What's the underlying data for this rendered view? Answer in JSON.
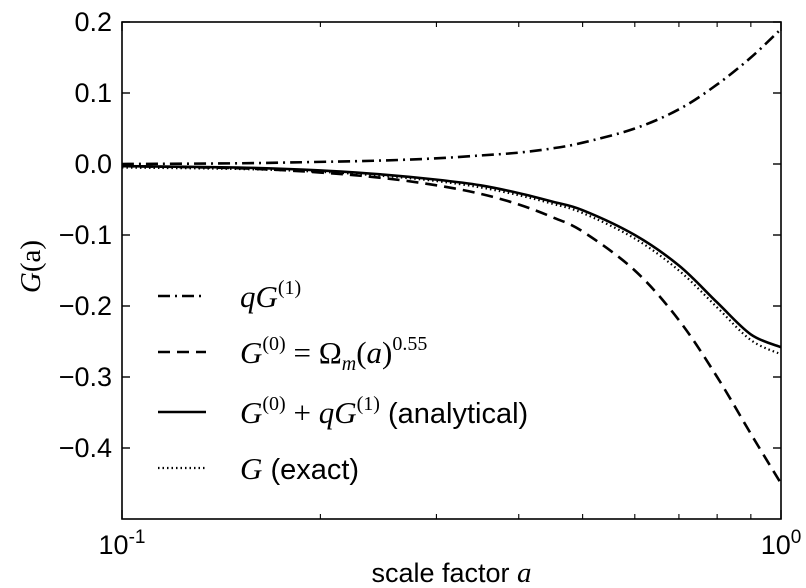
{
  "chart_data": {
    "type": "line",
    "xlabel": {
      "prefix": "scale factor ",
      "var": "a"
    },
    "ylabel": {
      "var": "G",
      "arg": "(a)"
    },
    "x_scale": "log",
    "xlim": [
      0.1,
      1.0
    ],
    "ylim": [
      -0.5,
      0.2
    ],
    "x_ticks": [
      {
        "value": 0.1,
        "base": "10",
        "exp": "-1"
      },
      {
        "value": 1.0,
        "base": "10",
        "exp": "0"
      }
    ],
    "y_ticks": [
      {
        "value": 0.2,
        "label": "0.2"
      },
      {
        "value": 0.1,
        "label": "0.1"
      },
      {
        "value": 0.0,
        "label": "0.0"
      },
      {
        "value": -0.1,
        "label": "−0.1"
      },
      {
        "value": -0.2,
        "label": "−0.2"
      },
      {
        "value": -0.3,
        "label": "−0.3"
      },
      {
        "value": -0.4,
        "label": "−0.4"
      }
    ],
    "grid": false,
    "legend_position": "lower-left",
    "series": [
      {
        "key": "qG1",
        "style": "dashdot",
        "legend_parts": [
          {
            "t": "q",
            "c": "math"
          },
          {
            "t": "G",
            "c": "math"
          },
          {
            "t": "(1)",
            "c": "sup"
          }
        ],
        "x": [
          0.1,
          0.15,
          0.2,
          0.25,
          0.3,
          0.35,
          0.4,
          0.45,
          0.5,
          0.6,
          0.7,
          0.8,
          0.9,
          1.0
        ],
        "y": [
          0.0,
          0.001,
          0.003,
          0.005,
          0.008,
          0.012,
          0.016,
          0.022,
          0.03,
          0.05,
          0.077,
          0.112,
          0.15,
          0.19
        ]
      },
      {
        "key": "G0",
        "style": "dashed",
        "legend_parts": [
          {
            "t": "G",
            "c": "math"
          },
          {
            "t": "(0)",
            "c": "sup"
          },
          {
            "t": " = Ω",
            "c": "plainserif"
          },
          {
            "t": "m",
            "c": "sub"
          },
          {
            "t": "(",
            "c": "plainserif"
          },
          {
            "t": "a",
            "c": "math"
          },
          {
            "t": ")",
            "c": "plainserif"
          },
          {
            "t": "0.55",
            "c": "sup"
          }
        ],
        "x": [
          0.1,
          0.15,
          0.2,
          0.25,
          0.3,
          0.35,
          0.4,
          0.45,
          0.5,
          0.6,
          0.7,
          0.8,
          0.9,
          1.0
        ],
        "y": [
          -0.003,
          -0.006,
          -0.012,
          -0.02,
          -0.03,
          -0.042,
          -0.057,
          -0.075,
          -0.095,
          -0.15,
          -0.22,
          -0.3,
          -0.38,
          -0.45
        ]
      },
      {
        "key": "analytical",
        "style": "solid",
        "legend_parts": [
          {
            "t": "G",
            "c": "math"
          },
          {
            "t": "(0)",
            "c": "sup"
          },
          {
            "t": " + ",
            "c": "plainserif"
          },
          {
            "t": "q",
            "c": "math"
          },
          {
            "t": "G",
            "c": "math"
          },
          {
            "t": "(1)",
            "c": "sup"
          },
          {
            "t": " (analytical)",
            "c": "plain"
          }
        ],
        "x": [
          0.1,
          0.15,
          0.2,
          0.25,
          0.3,
          0.35,
          0.4,
          0.45,
          0.5,
          0.6,
          0.7,
          0.8,
          0.9,
          1.0
        ],
        "y": [
          -0.003,
          -0.005,
          -0.009,
          -0.015,
          -0.022,
          -0.03,
          -0.041,
          -0.053,
          -0.065,
          -0.1,
          -0.143,
          -0.195,
          -0.24,
          -0.258
        ]
      },
      {
        "key": "exact",
        "style": "dotted",
        "legend_parts": [
          {
            "t": "G",
            "c": "math"
          },
          {
            "t": " (exact)",
            "c": "plain"
          }
        ],
        "x": [
          0.1,
          0.15,
          0.2,
          0.25,
          0.3,
          0.35,
          0.4,
          0.45,
          0.5,
          0.6,
          0.7,
          0.8,
          0.9,
          1.0
        ],
        "y": [
          -0.005,
          -0.007,
          -0.011,
          -0.017,
          -0.024,
          -0.033,
          -0.044,
          -0.056,
          -0.069,
          -0.105,
          -0.15,
          -0.202,
          -0.248,
          -0.268
        ]
      }
    ]
  }
}
